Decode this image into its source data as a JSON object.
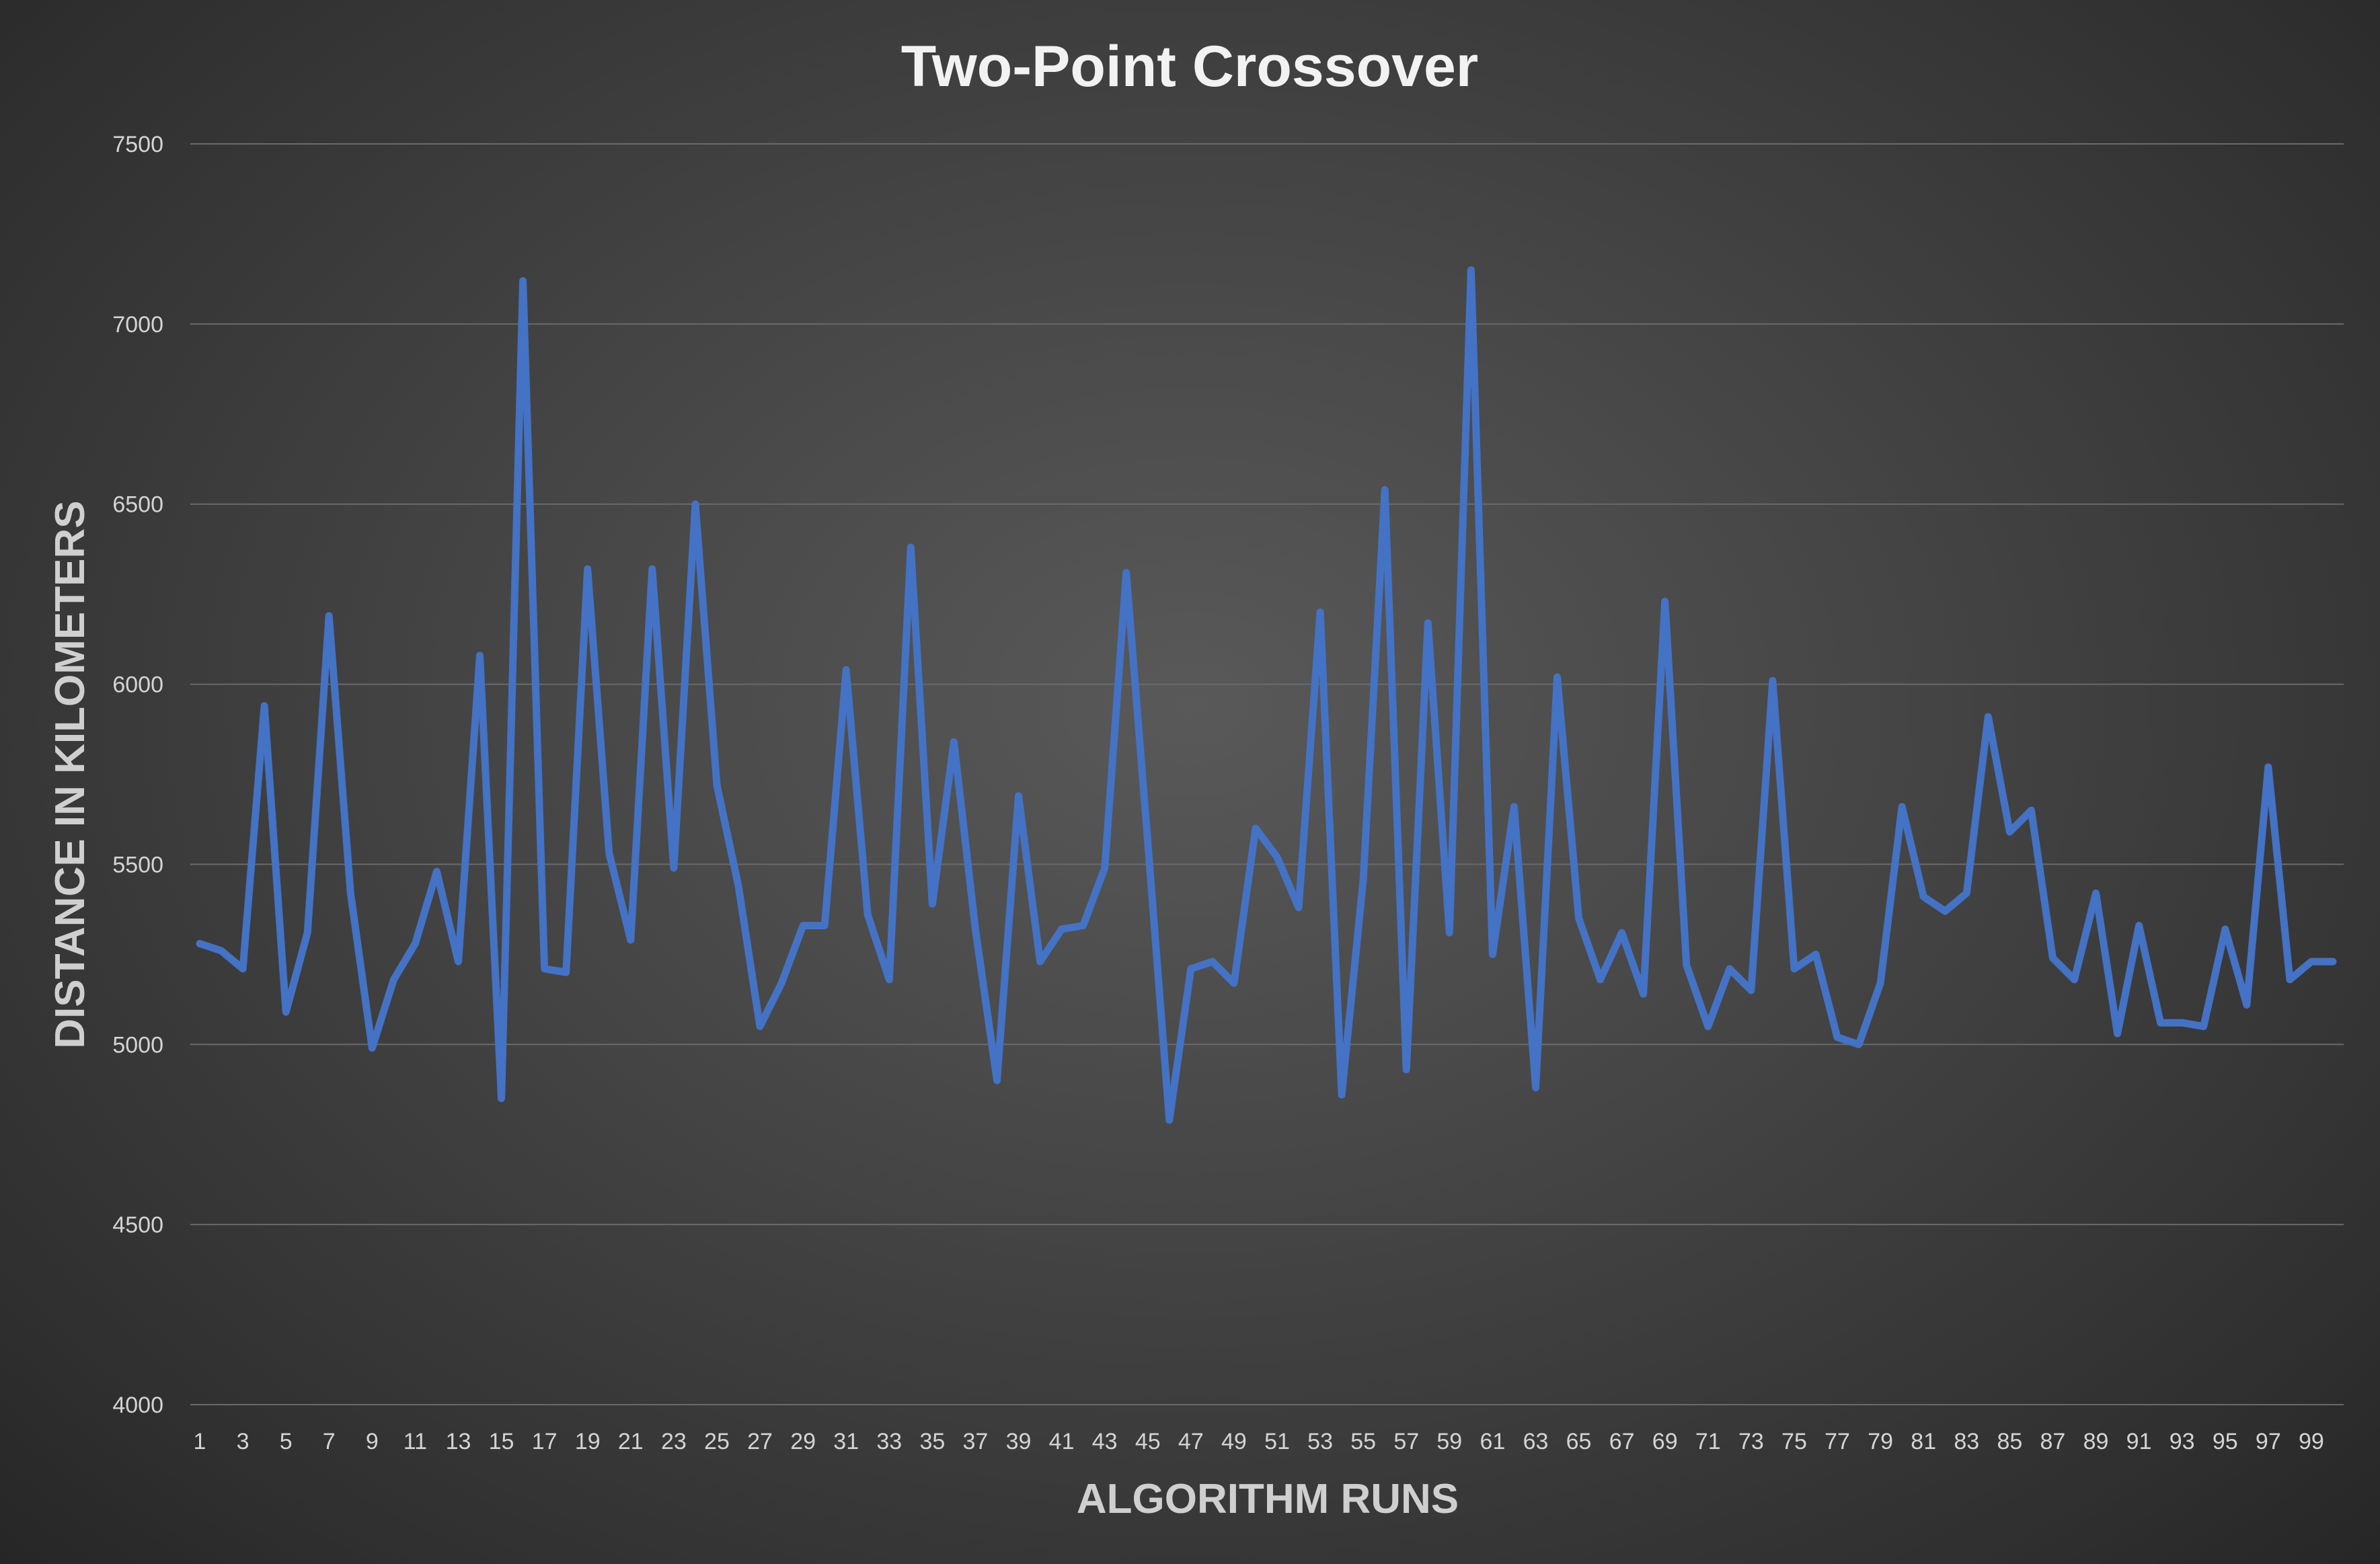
{
  "chart_data": {
    "type": "line",
    "title": "Two-Point Crossover",
    "xlabel": "ALGORITHM RUNS",
    "ylabel": "DISTANCE IN KILOMETERS",
    "ylim": [
      4000,
      7500
    ],
    "yticks": [
      4000,
      4500,
      5000,
      5500,
      6000,
      6500,
      7000,
      7500
    ],
    "x_tick_labels": [
      "1",
      "3",
      "5",
      "7",
      "9",
      "11",
      "13",
      "15",
      "17",
      "19",
      "21",
      "23",
      "25",
      "27",
      "29",
      "31",
      "33",
      "35",
      "37",
      "39",
      "41",
      "43",
      "45",
      "47",
      "49",
      "51",
      "53",
      "55",
      "57",
      "59",
      "61",
      "63",
      "65",
      "67",
      "69",
      "71",
      "73",
      "75",
      "77",
      "79",
      "81",
      "83",
      "85",
      "87",
      "89",
      "91",
      "93",
      "95",
      "97",
      "99"
    ],
    "x": [
      1,
      2,
      3,
      4,
      5,
      6,
      7,
      8,
      9,
      10,
      11,
      12,
      13,
      14,
      15,
      16,
      17,
      18,
      19,
      20,
      21,
      22,
      23,
      24,
      25,
      26,
      27,
      28,
      29,
      30,
      31,
      32,
      33,
      34,
      35,
      36,
      37,
      38,
      39,
      40,
      41,
      42,
      43,
      44,
      45,
      46,
      47,
      48,
      49,
      50,
      51,
      52,
      53,
      54,
      55,
      56,
      57,
      58,
      59,
      60,
      61,
      62,
      63,
      64,
      65,
      66,
      67,
      68,
      69,
      70,
      71,
      72,
      73,
      74,
      75,
      76,
      77,
      78,
      79,
      80,
      81,
      82,
      83,
      84,
      85,
      86,
      87,
      88,
      89,
      90,
      91,
      92,
      93,
      94,
      95,
      96,
      97,
      98,
      99,
      100
    ],
    "grid": true,
    "legend": "none",
    "series": [
      {
        "color": "#4472C4",
        "values": [
          5280,
          5260,
          5210,
          5940,
          5090,
          5310,
          6190,
          5420,
          4990,
          5180,
          5280,
          5480,
          5230,
          6080,
          4850,
          7120,
          5210,
          5200,
          6320,
          5530,
          5290,
          6320,
          5490,
          6500,
          5720,
          5440,
          5050,
          5170,
          5330,
          5330,
          6040,
          5360,
          5180,
          6380,
          5390,
          5840,
          5320,
          4900,
          5690,
          5230,
          5320,
          5330,
          5490,
          6310,
          5560,
          4790,
          5210,
          5230,
          5170,
          5600,
          5520,
          5380,
          6200,
          4860,
          5460,
          6540,
          4930,
          6170,
          5310,
          7150,
          5250,
          5660,
          4880,
          6020,
          5350,
          5180,
          5310,
          5140,
          6230,
          5220,
          5050,
          5210,
          5150,
          6010,
          5210,
          5250,
          5020,
          5000,
          5170,
          5660,
          5410,
          5370,
          5420,
          5910,
          5590,
          5650,
          5240,
          5180,
          5420,
          5030,
          5330,
          5060,
          5060,
          5050,
          5320,
          5110,
          5770,
          5180,
          5230,
          5230
        ]
      }
    ]
  }
}
